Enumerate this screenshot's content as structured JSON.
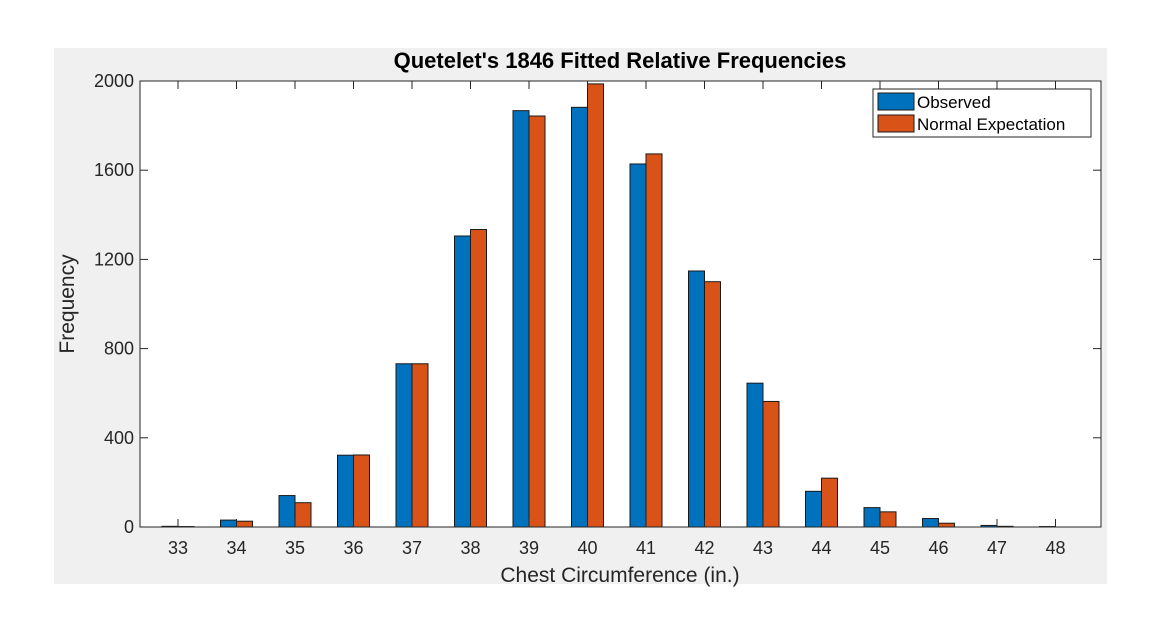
{
  "chart_data": {
    "type": "bar",
    "title": "Quetelet's 1846 Fitted Relative Frequencies",
    "xlabel": "Chest Circumference (in.)",
    "ylabel": "Frequency",
    "categories": [
      "33",
      "34",
      "35",
      "36",
      "37",
      "38",
      "39",
      "40",
      "41",
      "42",
      "43",
      "44",
      "45",
      "46",
      "47",
      "48"
    ],
    "ylim": [
      0,
      2000
    ],
    "yticks": [
      0,
      400,
      800,
      1200,
      1600,
      2000
    ],
    "grid": false,
    "legend_position": "top-right",
    "series": [
      {
        "name": "Observed",
        "color": "#0072bd",
        "values": [
          3,
          31,
          141,
          322,
          732,
          1305,
          1867,
          1882,
          1628,
          1148,
          645,
          160,
          87,
          38,
          7,
          2
        ]
      },
      {
        "name": "Normal Expectation",
        "color": "#d95319",
        "values": [
          2,
          26,
          109,
          323,
          732,
          1334,
          1843,
          1987,
          1673,
          1100,
          563,
          219,
          68,
          17,
          3,
          0
        ]
      }
    ]
  }
}
